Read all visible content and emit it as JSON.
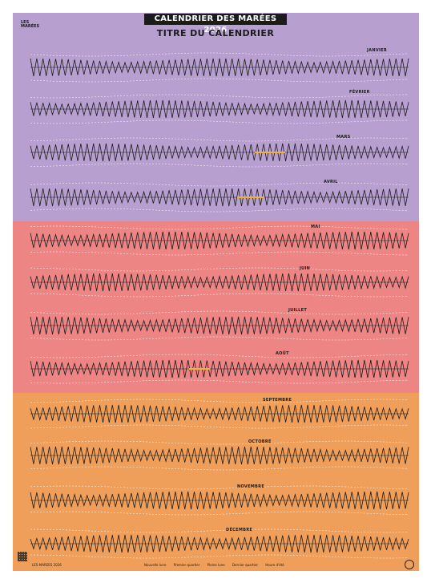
{
  "header": {
    "logo_text": "LES MARÉES",
    "title": "CALENDRIER DES MARÉES 2026",
    "subtitle": "TITRE DU CALENDRIER"
  },
  "months": [
    {
      "name": "JANVIER"
    },
    {
      "name": "FÉVRIER"
    },
    {
      "name": "MARS"
    },
    {
      "name": "AVRIL"
    },
    {
      "name": "MAI"
    },
    {
      "name": "JUIN"
    },
    {
      "name": "JUILLET"
    },
    {
      "name": "AOÛT"
    },
    {
      "name": "SEPTEMBRE"
    },
    {
      "name": "OCTOBRE"
    },
    {
      "name": "NOVEMBRE"
    },
    {
      "name": "DÉCEMBRE"
    }
  ],
  "colors": {
    "season_winter_spring": "#b79fd0",
    "season_summer": "#ee8585",
    "season_autumn": "#ef9f59",
    "wave_line": "#1b1b1b",
    "highlight": "#f2b234"
  },
  "footer": {
    "site": "LES-MAREES 2026",
    "legend": [
      "Nouvelle lune",
      "Premier quartier",
      "Pleine lune",
      "Dernier quartier",
      "Heure d'été"
    ]
  }
}
